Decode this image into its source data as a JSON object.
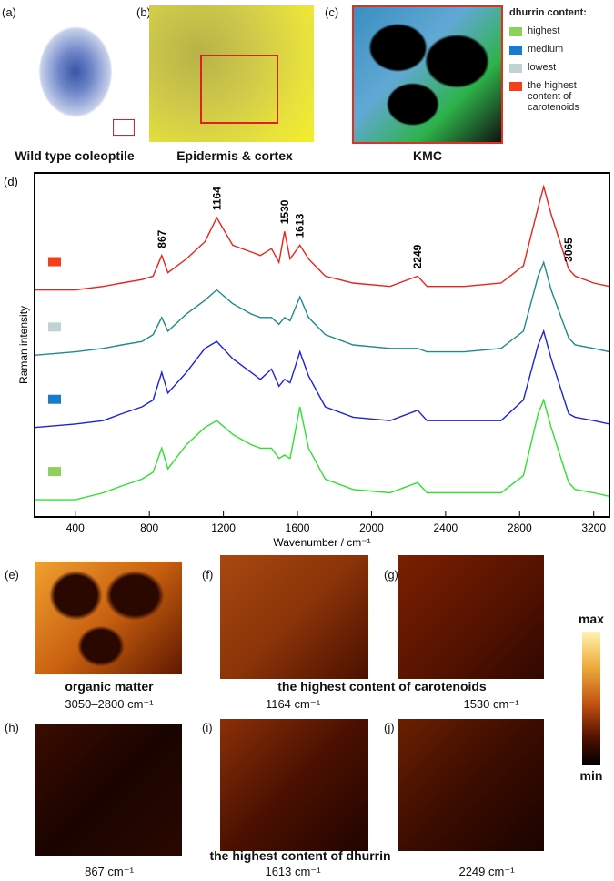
{
  "panels": {
    "a": {
      "label": "(a)",
      "caption": "Wild type coleoptile"
    },
    "b": {
      "label": "(b)",
      "caption": "Epidermis & cortex"
    },
    "c": {
      "label": "(c)",
      "caption": "KMC"
    }
  },
  "legend": {
    "title": "dhurrin content:",
    "items": [
      {
        "text": "highest",
        "color": "#8fd05a"
      },
      {
        "text": "medium",
        "color": "#1a7cc8"
      },
      {
        "text": "lowest",
        "color": "#bfd3d3"
      },
      {
        "text": "the highest content of carotenoids",
        "color": "#f0401e"
      }
    ]
  },
  "chart_data": {
    "type": "line",
    "panel_label": "(d)",
    "xlabel": "Wavenumber / cm⁻¹",
    "ylabel": "Raman intensity",
    "xlim": [
      180,
      3285
    ],
    "xticks": [
      400,
      800,
      1200,
      1600,
      2000,
      2400,
      2800,
      3200
    ],
    "ylim": [
      0,
      100
    ],
    "annotations": [
      867,
      1164,
      1530,
      1613,
      2249,
      3065
    ],
    "x": [
      180,
      400,
      550,
      650,
      760,
      820,
      867,
      900,
      1000,
      1100,
      1164,
      1250,
      1350,
      1400,
      1460,
      1500,
      1530,
      1560,
      1613,
      1660,
      1750,
      1900,
      2100,
      2249,
      2300,
      2500,
      2700,
      2820,
      2900,
      2930,
      2970,
      3065,
      3100,
      3200,
      3285
    ],
    "series": [
      {
        "color": "#e8231e",
        "swatch": "#f0401e",
        "values": [
          66,
          66,
          67,
          68,
          69,
          70,
          76,
          71,
          75,
          80,
          87,
          79,
          77,
          76,
          78,
          74,
          83,
          75,
          79,
          75,
          70,
          68,
          67,
          70,
          67,
          67,
          68,
          73,
          90,
          96,
          88,
          72,
          70,
          68,
          67
        ]
      },
      {
        "color": "#1f8a8a",
        "swatch": "#bfd3d3",
        "values": [
          47,
          48,
          49,
          50,
          51,
          53,
          58,
          54,
          59,
          63,
          66,
          62,
          59,
          58,
          58,
          56,
          58,
          57,
          64,
          58,
          53,
          50,
          49,
          49,
          48,
          48,
          49,
          54,
          70,
          74,
          66,
          52,
          50,
          49,
          48
        ]
      },
      {
        "color": "#1e22d8",
        "swatch": "#1a7cc8",
        "values": [
          26,
          27,
          28,
          30,
          32,
          34,
          42,
          36,
          42,
          49,
          51,
          46,
          42,
          40,
          43,
          38,
          40,
          39,
          48,
          41,
          32,
          29,
          28,
          31,
          28,
          28,
          28,
          34,
          50,
          54,
          46,
          30,
          29,
          28,
          27
        ]
      },
      {
        "color": "#2fe02f",
        "swatch": "#8fd05a",
        "values": [
          5,
          5,
          7,
          9,
          11,
          13,
          20,
          14,
          21,
          26,
          28,
          24,
          21,
          20,
          20,
          17,
          18,
          17,
          32,
          20,
          11,
          8,
          7,
          10,
          7,
          7,
          7,
          12,
          30,
          34,
          26,
          10,
          8,
          7,
          6
        ]
      }
    ]
  },
  "maps": {
    "e": {
      "label": "(e)"
    },
    "f": {
      "label": "(f)"
    },
    "g": {
      "label": "(g)"
    },
    "h": {
      "label": "(h)"
    },
    "i": {
      "label": "(i)"
    },
    "j": {
      "label": "(j)"
    },
    "captions": {
      "organic": "organic matter",
      "organic_range": "3050–2800 cm⁻¹",
      "carotenoids": "the highest content of carotenoids",
      "f_band": "1164 cm⁻¹",
      "g_band": "1530 cm⁻¹",
      "dhurrin": "the highest content of dhurrin",
      "h_band": "867 cm⁻¹",
      "i_band": "1613 cm⁻¹",
      "j_band": "2249 cm⁻¹"
    }
  },
  "colorbar": {
    "max": "max",
    "min": "min"
  }
}
